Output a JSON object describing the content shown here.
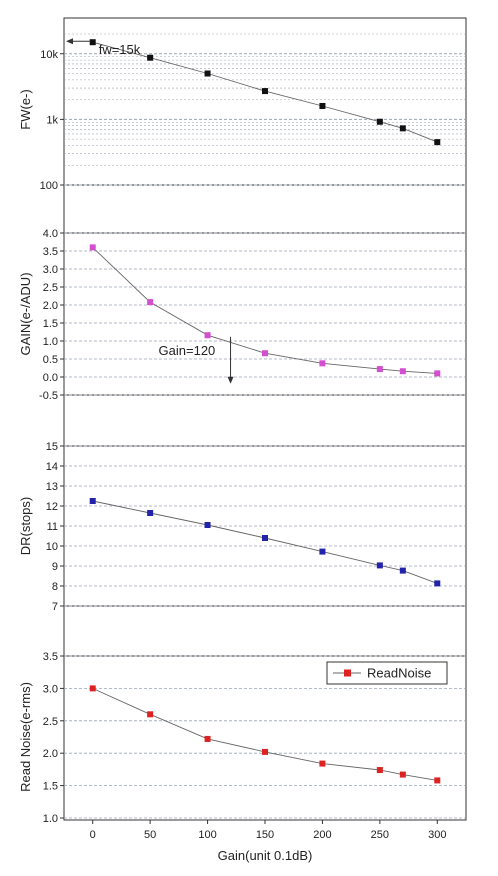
{
  "chart_data": [
    {
      "type": "line",
      "ylabel": "FW(e-)",
      "yscale": "log",
      "ylim": [
        100,
        20000
      ],
      "yticks": [
        100,
        1000,
        10000
      ],
      "ytick_labels": [
        "100",
        "1k",
        "10k"
      ],
      "minor_grid": true,
      "xlim": [
        -25,
        325
      ],
      "color": "#111111",
      "series": [
        {
          "x": [
            0,
            50,
            100,
            150,
            200,
            250,
            270,
            300
          ],
          "values": [
            15000,
            8700,
            5000,
            2700,
            1600,
            920,
            730,
            450
          ]
        }
      ],
      "annotation": {
        "text": "fw=15k",
        "x": 0,
        "y": 15000
      }
    },
    {
      "type": "line",
      "ylabel": "GAIN(e-/ADU)",
      "ylim": [
        -0.5,
        4.0
      ],
      "yticks": [
        -0.5,
        0.0,
        0.5,
        1.0,
        1.5,
        2.0,
        2.5,
        3.0,
        3.5,
        4.0
      ],
      "ytick_labels": [
        "-0.5",
        "0.0",
        "0.5",
        "1.0",
        "1.5",
        "2.0",
        "2.5",
        "3.0",
        "3.5",
        "4.0"
      ],
      "xlim": [
        -25,
        325
      ],
      "color": "#d44ed0",
      "series": [
        {
          "x": [
            0,
            50,
            100,
            150,
            200,
            250,
            270,
            300
          ],
          "values": [
            3.6,
            2.08,
            1.16,
            0.66,
            0.38,
            0.22,
            0.16,
            0.1
          ]
        }
      ],
      "annotation": {
        "text": "Gain=120",
        "x": 120,
        "y": 0.95
      }
    },
    {
      "type": "line",
      "ylabel": "DR(stops)",
      "ylim": [
        7,
        15
      ],
      "yticks": [
        7,
        8,
        9,
        10,
        11,
        12,
        13,
        14,
        15
      ],
      "ytick_labels": [
        "7",
        "8",
        "9",
        "10",
        "11",
        "12",
        "13",
        "14",
        "15"
      ],
      "xlim": [
        -25,
        325
      ],
      "color": "#2222aa",
      "series": [
        {
          "x": [
            0,
            50,
            100,
            150,
            200,
            250,
            270,
            300
          ],
          "values": [
            12.25,
            11.65,
            11.05,
            10.4,
            9.72,
            9.03,
            8.77,
            8.13
          ]
        }
      ]
    },
    {
      "type": "line",
      "ylabel": "Read Noise(e-rms)",
      "xlabel": "Gain(unit 0.1dB)",
      "ylim": [
        1.0,
        3.5
      ],
      "yticks": [
        1.0,
        1.5,
        2.0,
        2.5,
        3.0,
        3.5
      ],
      "ytick_labels": [
        "1.0",
        "1.5",
        "2.0",
        "2.5",
        "3.0",
        "3.5"
      ],
      "xlim": [
        -25,
        325
      ],
      "xticks": [
        0,
        50,
        100,
        150,
        200,
        250,
        300
      ],
      "xtick_labels": [
        "0",
        "50",
        "100",
        "150",
        "200",
        "250",
        "300"
      ],
      "color": "#dd2222",
      "legend": "top-right",
      "series": [
        {
          "name": "ReadNoise",
          "x": [
            0,
            50,
            100,
            150,
            200,
            250,
            270,
            300
          ],
          "values": [
            3.0,
            2.6,
            2.22,
            2.02,
            1.84,
            1.74,
            1.67,
            1.58
          ]
        }
      ]
    }
  ]
}
